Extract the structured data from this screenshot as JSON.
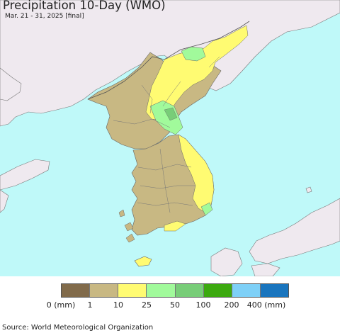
{
  "title": "Precipitation 10-Day (WMO)",
  "subtitle": "Mar. 21 - 31, 2025 [final]",
  "source": "Source: World Meteorological Organization",
  "colors": {
    "ocean": "#bff9f9",
    "land_outside": "#efe9ef",
    "class_0_1": "#816b4b",
    "class_1_10": "#c8b883",
    "class_10_25": "#fffb72",
    "class_25_50": "#a1fa9b",
    "class_50_100": "#78cd78",
    "class_100_200": "#3ca90f",
    "class_200_400": "#7ed0f7",
    "class_400_plus": "#1975be"
  },
  "legend": {
    "colors": [
      "#816b4b",
      "#c8b883",
      "#fffb72",
      "#a1fa9b",
      "#78cd78",
      "#3ca90f",
      "#7ed0f7",
      "#1975be"
    ],
    "labels": [
      "0 (mm)",
      "1",
      "10",
      "25",
      "50",
      "100",
      "200",
      "400 (mm)"
    ]
  }
}
